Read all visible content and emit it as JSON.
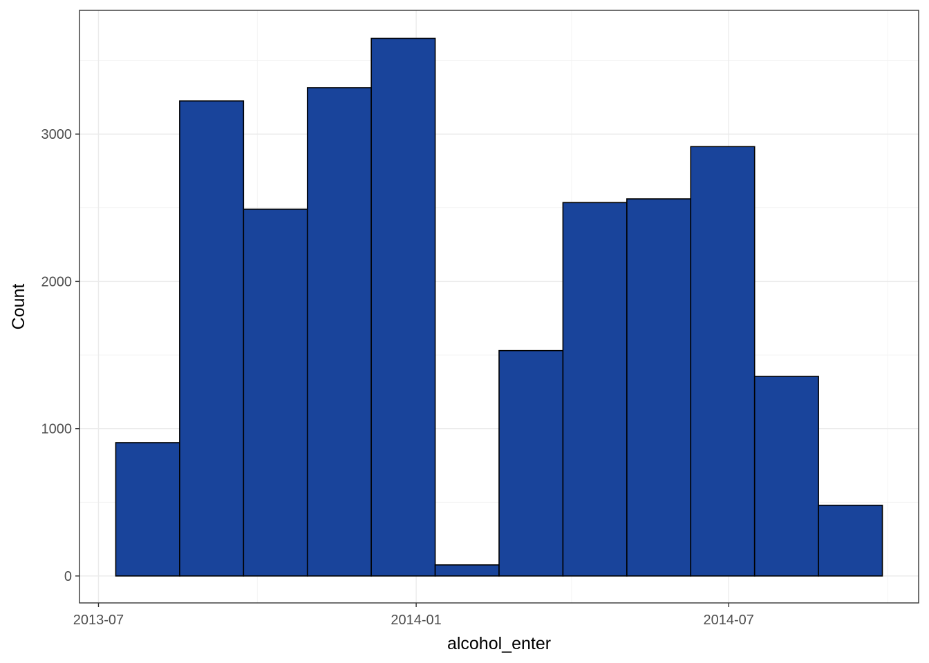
{
  "chart_data": {
    "type": "bar",
    "subtype": "histogram",
    "xlabel": "alcohol_enter",
    "ylabel": "Count",
    "x_tick_labels": [
      "2013-07",
      "2014-01",
      "2014-07"
    ],
    "x_ticks": [
      "2013-07-01",
      "2014-01-01",
      "2014-07-01"
    ],
    "x_minor_ticks": [
      "2013-10-01",
      "2014-04-01",
      "2014-10-01"
    ],
    "y_ticks": [
      0,
      1000,
      2000,
      3000
    ],
    "y_tick_labels": [
      "0",
      "1000",
      "2000",
      "3000"
    ],
    "xlim": [
      "2013-06-20",
      "2014-10-19"
    ],
    "ylim": [
      -183,
      3840
    ],
    "grid": true,
    "legend": "none",
    "bins": [
      {
        "start": "2013-07-11",
        "end": "2013-08-17",
        "count": 905
      },
      {
        "start": "2013-08-17",
        "end": "2013-09-23",
        "count": 3225
      },
      {
        "start": "2013-09-23",
        "end": "2013-10-30",
        "count": 2490
      },
      {
        "start": "2013-10-30",
        "end": "2013-12-06",
        "count": 3315
      },
      {
        "start": "2013-12-06",
        "end": "2014-01-12",
        "count": 3650
      },
      {
        "start": "2014-01-12",
        "end": "2014-02-18",
        "count": 75
      },
      {
        "start": "2014-02-18",
        "end": "2014-03-27",
        "count": 1530
      },
      {
        "start": "2014-03-27",
        "end": "2014-05-03",
        "count": 2535
      },
      {
        "start": "2014-05-03",
        "end": "2014-06-09",
        "count": 2560
      },
      {
        "start": "2014-06-09",
        "end": "2014-07-16",
        "count": 2915
      },
      {
        "start": "2014-07-16",
        "end": "2014-08-22",
        "count": 1355
      },
      {
        "start": "2014-08-22",
        "end": "2014-09-28",
        "count": 480
      }
    ]
  },
  "colors": {
    "bar_fill": "#19449b",
    "bar_stroke": "#000000",
    "panel_border": "#333333",
    "grid": "#ebebeb",
    "background": "#ffffff"
  }
}
